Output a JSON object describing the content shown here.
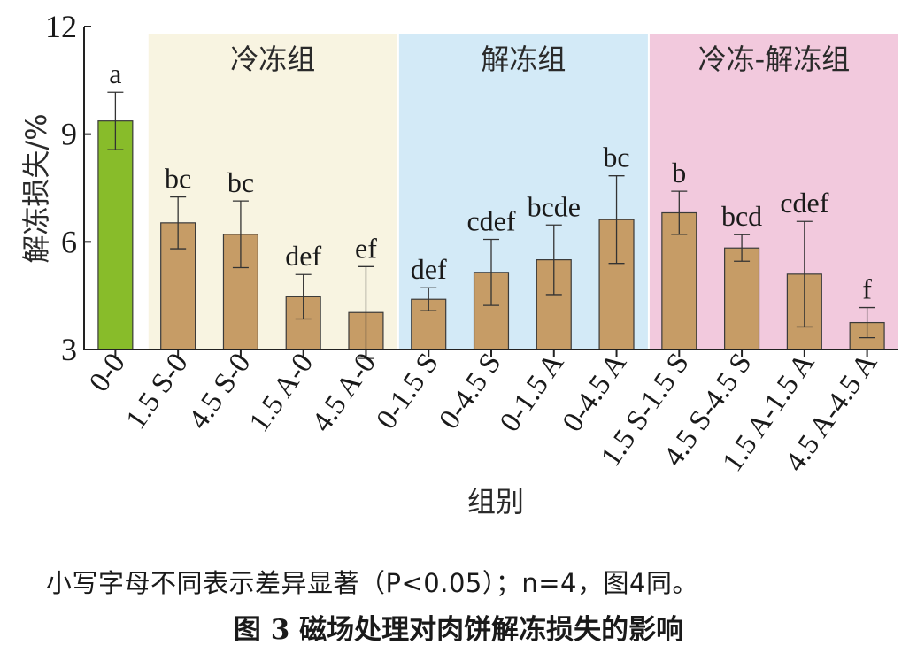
{
  "chart_data": {
    "type": "bar",
    "ylabel": "解冻损失/%",
    "xlabel": "组别",
    "ylim": [
      3,
      12
    ],
    "yticks": [
      "3",
      "6",
      "9",
      "12"
    ],
    "grid": false,
    "categories": [
      "0-0",
      "1.5 S-0",
      "4.5 S-0",
      "1.5 A-0",
      "4.5 A-0",
      "0-1.5 S",
      "0-4.5 S",
      "0-1.5 A",
      "0-4.5 A",
      "1.5 S-1.5 S",
      "4.5 S-4.5 S",
      "1.5 A-1.5 A",
      "4.5 A-4.5 A"
    ],
    "values": [
      9.37,
      6.53,
      6.21,
      4.47,
      4.03,
      4.4,
      5.15,
      5.5,
      6.62,
      6.81,
      5.83,
      5.1,
      3.75
    ],
    "errors": [
      0.8,
      0.72,
      0.93,
      0.62,
      1.28,
      0.32,
      0.92,
      0.97,
      1.22,
      0.6,
      0.37,
      1.47,
      0.42
    ],
    "significance": [
      "a",
      "bc",
      "bc",
      "def",
      "ef",
      "def",
      "cdef",
      "bcde",
      "bc",
      "b",
      "bcd",
      "cdef",
      "f"
    ],
    "groups": [
      {
        "label": "冷冻组",
        "from": 1,
        "to": 4,
        "color": "#f8f4e1"
      },
      {
        "label": "解冻组",
        "from": 5,
        "to": 8,
        "color": "#d3eaf7"
      },
      {
        "label": "冷冻-解冻组",
        "from": 9,
        "to": 12,
        "color": "#f2c9dd"
      }
    ],
    "control_color": "#88bc2a",
    "bar_color": "#c69c66"
  },
  "note": "小写字母不同表示差异显著（P<0.05）；n=4，图4同。",
  "caption": "图 3     磁场处理对肉饼解冻损失的影响"
}
